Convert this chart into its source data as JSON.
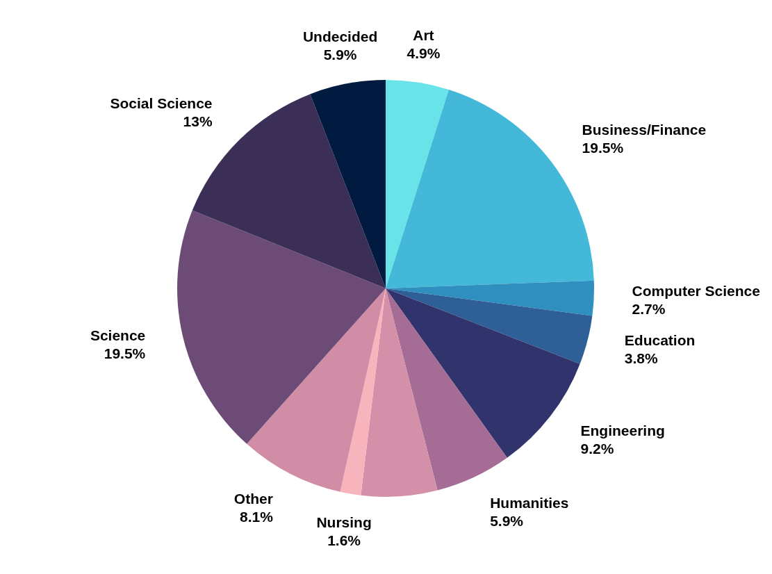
{
  "chart_data": {
    "type": "pie",
    "categories": [
      "Art",
      "Business/Finance",
      "Computer Science",
      "Education",
      "Engineering",
      "Humanities",
      null,
      "Nursing",
      "Other",
      "Science",
      "Social Science",
      "Undecided"
    ],
    "values": [
      4.9,
      19.5,
      2.7,
      3.8,
      9.2,
      5.9,
      5.9,
      1.6,
      8.1,
      19.5,
      13,
      5.9
    ],
    "colors": [
      "#68e3e8",
      "#43b8d8",
      "#2f8fbf",
      "#2e5f96",
      "#31346c",
      "#a56c96",
      "#d48fa9",
      "#f8b4bd",
      "#d18ca6",
      "#6c4b76",
      "#3b2f58",
      "#001a40"
    ],
    "value_labels": [
      "4.9%",
      "19.5%",
      "2.7%",
      "3.8%",
      "9.2%",
      "5.9%",
      null,
      "1.6%",
      "8.1%",
      "19.5%",
      "13%",
      "5.9%"
    ]
  }
}
